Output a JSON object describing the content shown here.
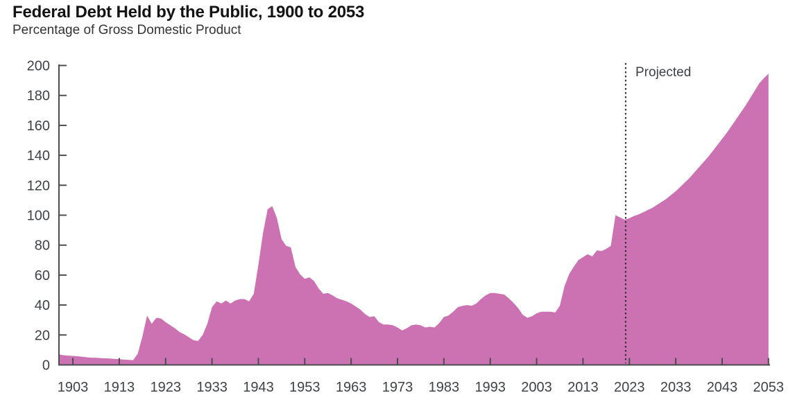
{
  "header": {
    "title": "Federal Debt Held by the Public, 1900 to 2053",
    "subtitle": "Percentage of Gross Domestic Product"
  },
  "annotations": {
    "projected_label": "Projected",
    "projection_divider_year": 2022.2
  },
  "colors": {
    "area_fill": "#cc72b2",
    "axis": "#4a4c4e",
    "tick_text": "#3f4245",
    "divider": "#2e2e2e"
  },
  "chart_data": {
    "type": "area",
    "title": "Federal Debt Held by the Public, 1900 to 2053",
    "subtitle": "Percentage of Gross Domestic Product",
    "xlabel": "",
    "ylabel": "Percentage of Gross Domestic Product",
    "xlim": [
      1900,
      2053
    ],
    "ylim": [
      0,
      200
    ],
    "grid": false,
    "legend": "none",
    "y_ticks": [
      0,
      20,
      40,
      60,
      80,
      100,
      120,
      140,
      160,
      180,
      200
    ],
    "x_ticks": [
      1903,
      1913,
      1923,
      1933,
      1943,
      1953,
      1963,
      1973,
      1983,
      1993,
      2003,
      2013,
      2023,
      2033,
      2043,
      2053
    ],
    "projection_divider_year": 2022.2,
    "series": [
      {
        "name": "Federal debt held by the public (% of GDP)",
        "x": [
          1900,
          1901,
          1902,
          1903,
          1904,
          1905,
          1906,
          1907,
          1908,
          1909,
          1910,
          1911,
          1912,
          1913,
          1914,
          1915,
          1916,
          1917,
          1918,
          1919,
          1920,
          1921,
          1922,
          1923,
          1924,
          1925,
          1926,
          1927,
          1928,
          1929,
          1930,
          1931,
          1932,
          1933,
          1934,
          1935,
          1936,
          1937,
          1938,
          1939,
          1940,
          1941,
          1942,
          1943,
          1944,
          1945,
          1946,
          1947,
          1948,
          1949,
          1950,
          1951,
          1952,
          1953,
          1954,
          1955,
          1956,
          1957,
          1958,
          1959,
          1960,
          1961,
          1962,
          1963,
          1964,
          1965,
          1966,
          1967,
          1968,
          1969,
          1970,
          1971,
          1972,
          1973,
          1974,
          1975,
          1976,
          1977,
          1978,
          1979,
          1980,
          1981,
          1982,
          1983,
          1984,
          1985,
          1986,
          1987,
          1988,
          1989,
          1990,
          1991,
          1992,
          1993,
          1994,
          1995,
          1996,
          1997,
          1998,
          1999,
          2000,
          2001,
          2002,
          2003,
          2004,
          2005,
          2006,
          2007,
          2008,
          2009,
          2010,
          2011,
          2012,
          2013,
          2014,
          2015,
          2016,
          2017,
          2018,
          2019,
          2020,
          2021,
          2022,
          2023,
          2024,
          2025,
          2026,
          2027,
          2028,
          2029,
          2030,
          2031,
          2032,
          2033,
          2034,
          2035,
          2036,
          2037,
          2038,
          2039,
          2040,
          2041,
          2042,
          2043,
          2044,
          2045,
          2046,
          2047,
          2048,
          2049,
          2050,
          2051,
          2052,
          2053
        ],
        "y": [
          7.0,
          6.5,
          6.2,
          6.0,
          5.8,
          5.5,
          5.1,
          4.8,
          4.8,
          4.5,
          4.4,
          4.3,
          4.0,
          3.8,
          3.6,
          3.4,
          3.2,
          7.5,
          19.0,
          33.0,
          27.5,
          31.5,
          31.0,
          28.5,
          26.5,
          24.5,
          22.0,
          20.5,
          18.5,
          16.5,
          16.0,
          20.0,
          27.5,
          38.5,
          42.5,
          41.0,
          43.0,
          41.0,
          43.0,
          44.0,
          44.0,
          42.5,
          47.5,
          67.0,
          88.0,
          104.0,
          106.0,
          98.0,
          84.0,
          79.5,
          78.5,
          65.5,
          60.5,
          57.5,
          58.5,
          56.0,
          51.0,
          47.5,
          48.0,
          46.5,
          44.5,
          43.5,
          42.5,
          41.0,
          39.0,
          37.0,
          34.0,
          32.0,
          32.5,
          28.5,
          27.0,
          27.0,
          26.5,
          25.0,
          23.0,
          24.5,
          26.5,
          27.0,
          26.5,
          25.0,
          25.5,
          25.0,
          28.0,
          32.0,
          33.0,
          35.5,
          38.5,
          39.5,
          40.0,
          39.5,
          41.0,
          44.0,
          46.5,
          48.0,
          48.0,
          47.5,
          47.0,
          44.5,
          41.5,
          38.0,
          33.5,
          31.5,
          32.5,
          34.5,
          35.5,
          35.5,
          35.5,
          35.0,
          39.5,
          52.5,
          60.5,
          65.5,
          70.0,
          72.0,
          74.0,
          72.5,
          76.5,
          76.0,
          77.5,
          79.5,
          100.0,
          98.5,
          97.0,
          98.0,
          99.5,
          100.5,
          102.0,
          103.5,
          105.0,
          107.0,
          109.0,
          111.0,
          113.5,
          116.0,
          119.0,
          122.0,
          125.0,
          128.5,
          132.0,
          135.5,
          139.0,
          143.0,
          147.0,
          151.0,
          155.0,
          159.5,
          164.0,
          168.5,
          173.0,
          178.0,
          183.0,
          188.0,
          191.5,
          194.5
        ]
      }
    ]
  }
}
